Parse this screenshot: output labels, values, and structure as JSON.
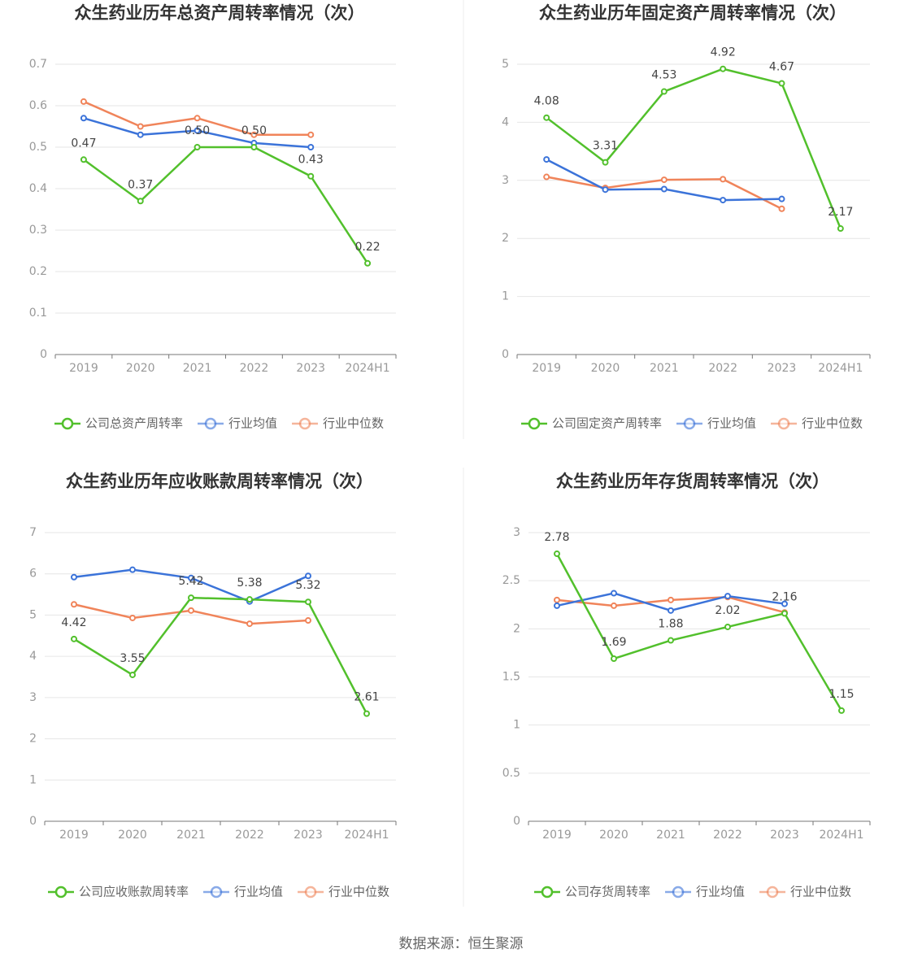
{
  "chart_data": [
    {
      "type": "line",
      "title": "众生药业历年总资产周转率情况（次）",
      "categories": [
        "2019",
        "2020",
        "2021",
        "2022",
        "2023",
        "2024H1"
      ],
      "ylim": [
        0,
        0.7
      ],
      "yticks": [
        0,
        0.1,
        0.2,
        0.3,
        0.4,
        0.5,
        0.6,
        0.7
      ],
      "grid": true,
      "series": [
        {
          "name": "公司总资产周转率",
          "color": "#52c02c",
          "values": [
            0.47,
            0.37,
            0.5,
            0.5,
            0.43,
            0.22
          ],
          "value_labels": [
            "0.47",
            "0.37",
            "0.50",
            "0.50",
            "0.43",
            "0.22"
          ]
        },
        {
          "name": "行业均值",
          "color": "#3b73d9",
          "values": [
            0.57,
            0.53,
            0.54,
            0.51,
            0.5,
            null
          ]
        },
        {
          "name": "行业中位数",
          "color": "#f0845a",
          "values": [
            0.61,
            0.55,
            0.57,
            0.53,
            0.53,
            null
          ]
        }
      ]
    },
    {
      "type": "line",
      "title": "众生药业历年固定资产周转率情况（次）",
      "categories": [
        "2019",
        "2020",
        "2021",
        "2022",
        "2023",
        "2024H1"
      ],
      "ylim": [
        0,
        5
      ],
      "yticks": [
        0,
        1,
        2,
        3,
        4,
        5
      ],
      "grid": true,
      "series": [
        {
          "name": "公司固定资产周转率",
          "color": "#52c02c",
          "values": [
            4.08,
            3.31,
            4.53,
            4.92,
            4.67,
            2.17
          ]
        },
        {
          "name": "行业均值",
          "color": "#3b73d9",
          "values": [
            3.36,
            2.84,
            2.85,
            2.66,
            2.68,
            null
          ]
        },
        {
          "name": "行业中位数",
          "color": "#f0845a",
          "values": [
            3.06,
            2.87,
            3.01,
            3.02,
            2.51,
            null
          ]
        }
      ]
    },
    {
      "type": "line",
      "title": "众生药业历年应收账款周转率情况（次）",
      "categories": [
        "2019",
        "2020",
        "2021",
        "2022",
        "2023",
        "2024H1"
      ],
      "ylim": [
        0,
        7
      ],
      "yticks": [
        0,
        1,
        2,
        3,
        4,
        5,
        6,
        7
      ],
      "grid": true,
      "series": [
        {
          "name": "公司应收账款周转率",
          "color": "#52c02c",
          "values": [
            4.42,
            3.55,
            5.42,
            5.38,
            5.32,
            2.61
          ]
        },
        {
          "name": "行业均值",
          "color": "#3b73d9",
          "values": [
            5.92,
            6.1,
            5.9,
            5.33,
            5.95,
            null
          ]
        },
        {
          "name": "行业中位数",
          "color": "#f0845a",
          "values": [
            5.26,
            4.93,
            5.11,
            4.79,
            4.87,
            null
          ]
        }
      ]
    },
    {
      "type": "line",
      "title": "众生药业历年存货周转率情况（次）",
      "categories": [
        "2019",
        "2020",
        "2021",
        "2022",
        "2023",
        "2024H1"
      ],
      "ylim": [
        0,
        3
      ],
      "yticks": [
        0,
        0.5,
        1,
        1.5,
        2,
        2.5,
        3
      ],
      "grid": true,
      "series": [
        {
          "name": "公司存货周转率",
          "color": "#52c02c",
          "values": [
            2.78,
            1.69,
            1.88,
            2.02,
            2.16,
            1.15
          ]
        },
        {
          "name": "行业均值",
          "color": "#3b73d9",
          "values": [
            2.24,
            2.37,
            2.19,
            2.34,
            2.26,
            null
          ]
        },
        {
          "name": "行业中位数",
          "color": "#f0845a",
          "values": [
            2.3,
            2.24,
            2.3,
            2.33,
            2.17,
            null
          ]
        }
      ]
    }
  ],
  "source": "数据来源：恒生聚源"
}
